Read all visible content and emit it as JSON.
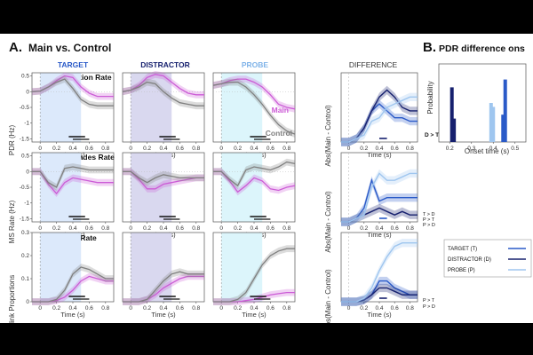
{
  "panel_a": {
    "label": "A.",
    "title": "Main vs. Control",
    "column_titles": [
      "TARGET",
      "DISTRACTOR",
      "PROBE",
      "DIFFERENCE"
    ],
    "row_titles": [
      "Pupil Dilation Rate",
      "Microsaccades Rate",
      "Blink Rate"
    ],
    "row_ylabels": [
      "PDR (Hz)",
      "MS Rate (Hz)",
      "Blink Proportions"
    ],
    "diff_ylabel": "Abs(Main - Control)",
    "xlabel": "Time (s)",
    "legend_main": "Main",
    "legend_control": "Control",
    "sig_labels": [
      "D > T",
      "T > D",
      "P > T",
      "P > D",
      "P > T",
      "P > D"
    ]
  },
  "panel_b": {
    "label": "B.",
    "title": "PDR difference ons",
    "ylabel": "Probability",
    "xlabel": "Onset time (s)"
  },
  "legend": [
    "TARGET (T)",
    "DISTRACTOR (D)",
    "PROBE (P)"
  ],
  "colors": {
    "main": "#cc5cd6",
    "control": "#808080",
    "target": "#2a5ac8",
    "distractor": "#16206e",
    "probe": "#9fc6ef",
    "target_shade": "#dce9fb",
    "distractor_shade": "#d9d8ef",
    "probe_shade": "#dcf5fb"
  },
  "chart_data": [
    {
      "type": "line",
      "title": "Pupil Dilation Rate",
      "ylabel": "PDR (Hz)",
      "xlabel": "Time (s)",
      "x": [
        -0.1,
        0,
        0.1,
        0.2,
        0.3,
        0.4,
        0.5,
        0.6,
        0.7,
        0.8,
        0.9
      ],
      "xticks": [
        0,
        0.2,
        0.4,
        0.6,
        0.8
      ],
      "ylim": [
        -1.6,
        0.6
      ],
      "yticks": [
        0.5,
        0,
        -0.5,
        -1,
        -1.5
      ],
      "panels": [
        {
          "condition": "TARGET",
          "series": [
            {
              "name": "Main",
              "values": [
                0,
                0.02,
                0.15,
                0.35,
                0.5,
                0.45,
                0.15,
                -0.05,
                -0.15,
                -0.15,
                -0.15
              ]
            },
            {
              "name": "Control",
              "values": [
                0,
                0.02,
                0.15,
                0.3,
                0.4,
                0.1,
                -0.25,
                -0.4,
                -0.45,
                -0.45,
                -0.45
              ]
            }
          ]
        },
        {
          "condition": "DISTRACTOR",
          "series": [
            {
              "name": "Main",
              "values": [
                0,
                0.05,
                0.2,
                0.45,
                0.55,
                0.5,
                0.3,
                0.1,
                -0.05,
                -0.1,
                -0.1
              ]
            },
            {
              "name": "Control",
              "values": [
                0,
                0.05,
                0.15,
                0.3,
                0.25,
                0.0,
                -0.2,
                -0.35,
                -0.4,
                -0.45,
                -0.45
              ]
            }
          ]
        },
        {
          "condition": "PROBE",
          "series": [
            {
              "name": "Main",
              "values": [
                0.2,
                0.25,
                0.35,
                0.4,
                0.4,
                0.3,
                0.15,
                -0.1,
                -0.4,
                -0.5,
                -0.55
              ]
            },
            {
              "name": "Control",
              "values": [
                0.2,
                0.25,
                0.3,
                0.3,
                0.15,
                -0.1,
                -0.4,
                -0.75,
                -1.05,
                -1.25,
                -1.35
              ]
            }
          ]
        }
      ]
    },
    {
      "type": "line",
      "title": "Microsaccades Rate",
      "ylabel": "MS Rate (Hz)",
      "xlabel": "Time (s)",
      "x": [
        -0.1,
        0,
        0.1,
        0.2,
        0.3,
        0.4,
        0.5,
        0.6,
        0.7,
        0.8,
        0.9
      ],
      "xticks": [
        0,
        0.2,
        0.4,
        0.6,
        0.8
      ],
      "ylim": [
        -1.6,
        0.6
      ],
      "yticks": [
        0.5,
        0,
        -0.5,
        -1,
        -1.5
      ],
      "panels": [
        {
          "condition": "TARGET",
          "series": [
            {
              "name": "Main",
              "values": [
                0,
                0,
                -0.4,
                -0.7,
                -0.35,
                -0.2,
                -0.25,
                -0.3,
                -0.35,
                -0.35,
                -0.35
              ]
            },
            {
              "name": "Control",
              "values": [
                0,
                0,
                -0.35,
                -0.5,
                0.1,
                0.15,
                0.1,
                0.05,
                0.05,
                0.05,
                0.05
              ]
            }
          ]
        },
        {
          "condition": "DISTRACTOR",
          "series": [
            {
              "name": "Main",
              "values": [
                0,
                0,
                -0.25,
                -0.55,
                -0.55,
                -0.4,
                -0.35,
                -0.3,
                -0.25,
                -0.2,
                -0.2
              ]
            },
            {
              "name": "Control",
              "values": [
                0,
                0,
                -0.2,
                -0.35,
                -0.2,
                -0.1,
                -0.15,
                -0.2,
                -0.2,
                -0.2,
                -0.2
              ]
            }
          ]
        },
        {
          "condition": "PROBE",
          "series": [
            {
              "name": "Main",
              "values": [
                0,
                0,
                -0.3,
                -0.65,
                -0.45,
                -0.2,
                -0.3,
                -0.55,
                -0.6,
                -0.5,
                -0.45
              ]
            },
            {
              "name": "Control",
              "values": [
                0,
                0,
                -0.25,
                -0.45,
                0.05,
                0.15,
                0.1,
                0.05,
                0.15,
                0.3,
                0.25
              ]
            }
          ]
        }
      ]
    },
    {
      "type": "line",
      "title": "Blink Rate",
      "ylabel": "Blink Proportions",
      "xlabel": "Time (s)",
      "x": [
        -0.1,
        0,
        0.1,
        0.2,
        0.3,
        0.4,
        0.5,
        0.6,
        0.7,
        0.8,
        0.9
      ],
      "xticks": [
        0,
        0.2,
        0.4,
        0.6,
        0.8
      ],
      "ylim": [
        0,
        0.3
      ],
      "yticks": [
        0.3,
        0.2,
        0.1,
        0
      ],
      "panels": [
        {
          "condition": "TARGET",
          "series": [
            {
              "name": "Main",
              "values": [
                0,
                0,
                0,
                0.005,
                0.02,
                0.05,
                0.09,
                0.11,
                0.1,
                0.09,
                0.09
              ]
            },
            {
              "name": "Control",
              "values": [
                0,
                0,
                0,
                0.01,
                0.05,
                0.12,
                0.15,
                0.14,
                0.12,
                0.1,
                0.1
              ]
            }
          ]
        },
        {
          "condition": "DISTRACTOR",
          "series": [
            {
              "name": "Main",
              "values": [
                0,
                0,
                0,
                0.01,
                0.03,
                0.06,
                0.08,
                0.1,
                0.11,
                0.11,
                0.11
              ]
            },
            {
              "name": "Control",
              "values": [
                0,
                0,
                0,
                0.01,
                0.05,
                0.09,
                0.12,
                0.13,
                0.12,
                0.12,
                0.12
              ]
            }
          ]
        },
        {
          "condition": "PROBE",
          "series": [
            {
              "name": "Main",
              "values": [
                0,
                0,
                0,
                0,
                0.005,
                0.01,
                0.02,
                0.03,
                0.035,
                0.04,
                0.04
              ]
            },
            {
              "name": "Control",
              "values": [
                0,
                0,
                0,
                0.01,
                0.04,
                0.1,
                0.16,
                0.2,
                0.22,
                0.23,
                0.23
              ]
            }
          ]
        }
      ]
    },
    {
      "type": "line",
      "title": "DIFFERENCE - Pupil Dilation Rate",
      "ylabel": "Abs(Main - Control)",
      "xlabel": "Time (s)",
      "x": [
        -0.1,
        0,
        0.1,
        0.2,
        0.3,
        0.4,
        0.5,
        0.6,
        0.7,
        0.8,
        0.9
      ],
      "xticks": [
        0,
        0.2,
        0.4,
        0.6,
        0.8
      ],
      "ylim": [
        0,
        1
      ],
      "series": [
        {
          "name": "TARGET (T)",
          "values": [
            0,
            0,
            0.05,
            0.2,
            0.45,
            0.55,
            0.45,
            0.35,
            0.35,
            0.3,
            0.3
          ]
        },
        {
          "name": "DISTRACTOR (D)",
          "values": [
            0,
            0,
            0.05,
            0.2,
            0.45,
            0.65,
            0.75,
            0.65,
            0.5,
            0.45,
            0.45
          ]
        },
        {
          "name": "PROBE (P)",
          "values": [
            0,
            0,
            0.05,
            0.1,
            0.3,
            0.35,
            0.5,
            0.55,
            0.6,
            0.65,
            0.65
          ]
        }
      ]
    },
    {
      "type": "line",
      "title": "DIFFERENCE - Microsaccades Rate",
      "ylabel": "Abs(Main - Control)",
      "xlabel": "Time (s)",
      "x": [
        -0.1,
        0,
        0.1,
        0.2,
        0.3,
        0.4,
        0.5,
        0.6,
        0.7,
        0.8,
        0.9
      ],
      "xticks": [
        0,
        0.2,
        0.4,
        0.6,
        0.8
      ],
      "ylim": [
        0,
        1
      ],
      "series": [
        {
          "name": "TARGET (T)",
          "values": [
            0,
            0,
            0.05,
            0.2,
            0.6,
            0.3,
            0.35,
            0.35,
            0.35,
            0.35,
            0.35
          ]
        },
        {
          "name": "DISTRACTOR (D)",
          "values": [
            0,
            0,
            0.05,
            0.1,
            0.15,
            0.2,
            0.15,
            0.1,
            0.15,
            0.1,
            0.1
          ]
        },
        {
          "name": "PROBE (P)",
          "values": [
            0,
            0,
            0.05,
            0.1,
            0.5,
            0.7,
            0.6,
            0.6,
            0.65,
            0.7,
            0.7
          ]
        }
      ]
    },
    {
      "type": "line",
      "title": "DIFFERENCE - Blink Rate",
      "ylabel": "Abs(Main - Control)",
      "xlabel": "Time (s)",
      "x": [
        -0.1,
        0,
        0.1,
        0.2,
        0.3,
        0.4,
        0.5,
        0.6,
        0.7,
        0.8,
        0.9
      ],
      "xticks": [
        0,
        0.2,
        0.4,
        0.6,
        0.8
      ],
      "ylim": [
        0,
        0.2
      ],
      "series": [
        {
          "name": "TARGET (T)",
          "values": [
            0,
            0,
            0,
            0.005,
            0.02,
            0.06,
            0.06,
            0.04,
            0.03,
            0.02,
            0.02
          ]
        },
        {
          "name": "DISTRACTOR (D)",
          "values": [
            0,
            0,
            0,
            0.005,
            0.02,
            0.04,
            0.04,
            0.03,
            0.02,
            0.02,
            0.02
          ]
        },
        {
          "name": "PROBE (P)",
          "values": [
            0,
            0,
            0,
            0.01,
            0.04,
            0.09,
            0.13,
            0.16,
            0.17,
            0.17,
            0.17
          ]
        }
      ]
    },
    {
      "type": "bar",
      "title": "PDR difference onset",
      "xlabel": "Onset time (s)",
      "ylabel": "Probability",
      "xticks": [
        0.2,
        0.3,
        0.4,
        0.5
      ],
      "yticks": [],
      "series": [
        {
          "name": "TARGET (T)",
          "x": [
            0.445,
            0.455
          ],
          "values": [
            0.35,
            0.8
          ]
        },
        {
          "name": "DISTRACTOR (D)",
          "x": [
            0.21,
            0.22
          ],
          "values": [
            0.7,
            0.3
          ]
        },
        {
          "name": "PROBE (P)",
          "x": [
            0.39,
            0.4
          ],
          "values": [
            0.5,
            0.45
          ]
        }
      ]
    }
  ]
}
